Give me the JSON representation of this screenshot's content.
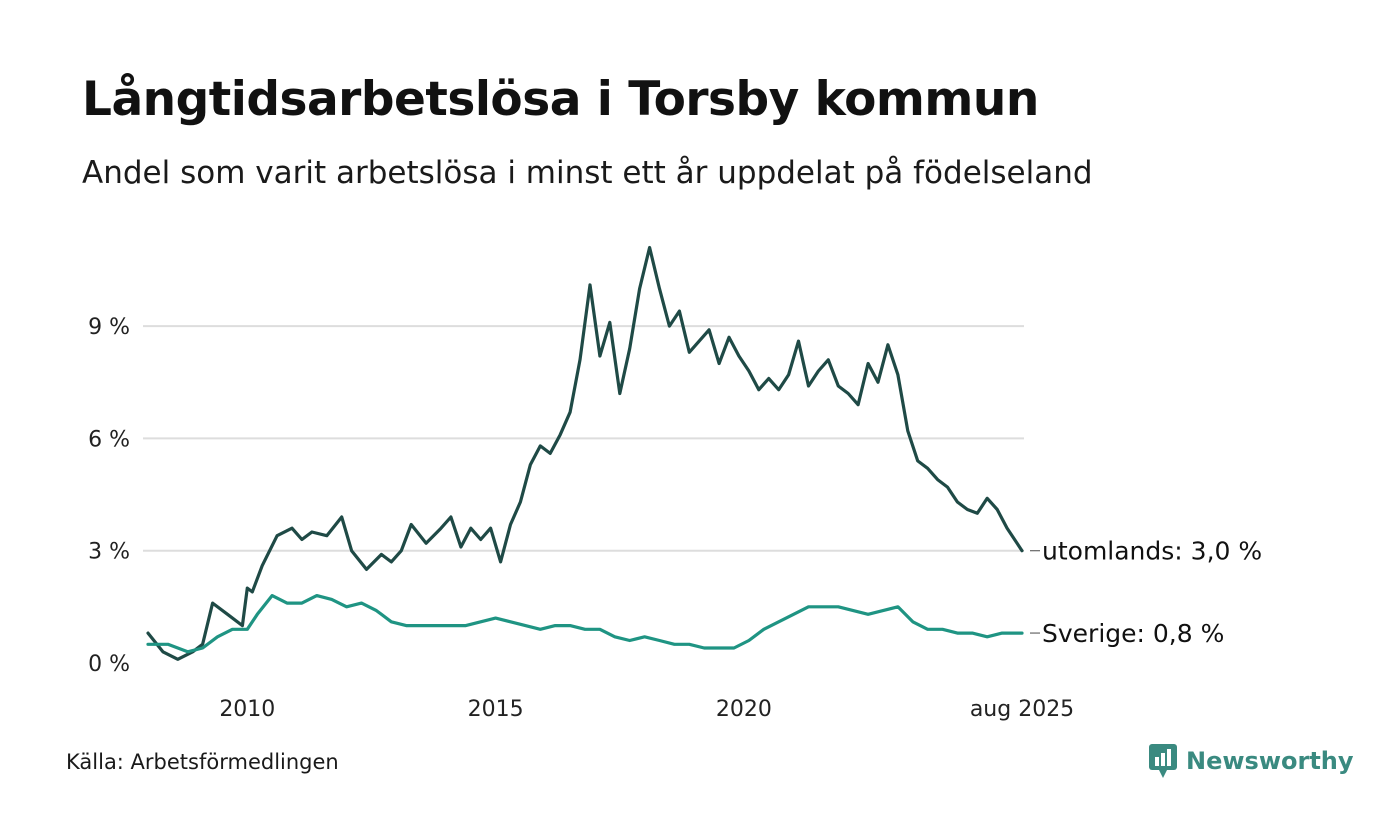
{
  "header": {
    "title": "Långtidsarbetslösa i Torsby kommun",
    "subtitle": "Andel som varit arbetslösa i minst ett år uppdelat på födelseland"
  },
  "footer": {
    "source": "Källa: Arbetsförmedlingen",
    "brand": "Newsworthy",
    "brand_icon": "newsworthy-logo-icon"
  },
  "colors": {
    "utomlands": "#1f4a46",
    "sverige": "#1f9483",
    "grid": "#dddddd"
  },
  "chart_data": {
    "type": "line",
    "title": "Långtidsarbetslösa i Torsby kommun",
    "subtitle": "Andel som varit arbetslösa i minst ett år uppdelat på födelseland",
    "y_ticks": [
      0,
      3,
      6,
      9
    ],
    "y_tick_labels": [
      "0 %",
      "3 %",
      "6 %",
      "9 %"
    ],
    "ylim": [
      0,
      11.3
    ],
    "x_ticks": [
      2010,
      2015,
      2020,
      2025.6
    ],
    "x_tick_labels": [
      "2010",
      "2015",
      "2020",
      "aug 2025"
    ],
    "xlim": [
      2008.0,
      2025.6
    ],
    "grid": "horizontal",
    "series": [
      {
        "key": "utomlands",
        "end_label": "utomlands: 3,0 %",
        "x": [
          2008.0,
          2008.3,
          2008.6,
          2008.9,
          2009.1,
          2009.3,
          2009.6,
          2009.9,
          2010.0,
          2010.1,
          2010.3,
          2010.6,
          2010.9,
          2011.1,
          2011.3,
          2011.6,
          2011.9,
          2012.1,
          2012.4,
          2012.7,
          2012.9,
          2013.1,
          2013.3,
          2013.6,
          2013.9,
          2014.1,
          2014.3,
          2014.5,
          2014.7,
          2014.9,
          2015.1,
          2015.3,
          2015.5,
          2015.7,
          2015.9,
          2016.1,
          2016.3,
          2016.5,
          2016.7,
          2016.9,
          2017.1,
          2017.3,
          2017.5,
          2017.7,
          2017.9,
          2018.1,
          2018.3,
          2018.5,
          2018.7,
          2018.9,
          2019.1,
          2019.3,
          2019.5,
          2019.7,
          2019.9,
          2020.1,
          2020.3,
          2020.5,
          2020.7,
          2020.9,
          2021.1,
          2021.3,
          2021.5,
          2021.7,
          2021.9,
          2022.1,
          2022.3,
          2022.5,
          2022.7,
          2022.9,
          2023.1,
          2023.3,
          2023.5,
          2023.7,
          2023.9,
          2024.1,
          2024.3,
          2024.5,
          2024.7,
          2024.9,
          2025.1,
          2025.3,
          2025.6
        ],
        "values": [
          0.8,
          0.3,
          0.1,
          0.3,
          0.5,
          1.6,
          1.3,
          1.0,
          2.0,
          1.9,
          2.6,
          3.4,
          3.6,
          3.3,
          3.5,
          3.4,
          3.9,
          3.0,
          2.5,
          2.9,
          2.7,
          3.0,
          3.7,
          3.2,
          3.6,
          3.9,
          3.1,
          3.6,
          3.3,
          3.6,
          2.7,
          3.7,
          4.3,
          5.3,
          5.8,
          5.6,
          6.1,
          6.7,
          8.1,
          10.1,
          8.2,
          9.1,
          7.2,
          8.4,
          10.0,
          11.1,
          10.0,
          9.0,
          9.4,
          8.3,
          8.6,
          8.9,
          8.0,
          8.7,
          8.2,
          7.8,
          7.3,
          7.6,
          7.3,
          7.7,
          8.6,
          7.4,
          7.8,
          8.1,
          7.4,
          7.2,
          6.9,
          8.0,
          7.5,
          8.5,
          7.7,
          6.2,
          5.4,
          5.2,
          4.9,
          4.7,
          4.3,
          4.1,
          4.0,
          4.4,
          4.1,
          3.6,
          3.0
        ]
      },
      {
        "key": "sverige",
        "end_label": "Sverige: 0,8 %",
        "x": [
          2008.0,
          2008.4,
          2008.8,
          2009.1,
          2009.4,
          2009.7,
          2010.0,
          2010.2,
          2010.5,
          2010.8,
          2011.1,
          2011.4,
          2011.7,
          2012.0,
          2012.3,
          2012.6,
          2012.9,
          2013.2,
          2013.5,
          2013.8,
          2014.1,
          2014.4,
          2014.7,
          2015.0,
          2015.3,
          2015.6,
          2015.9,
          2016.2,
          2016.5,
          2016.8,
          2017.1,
          2017.4,
          2017.7,
          2018.0,
          2018.3,
          2018.6,
          2018.9,
          2019.2,
          2019.5,
          2019.8,
          2020.1,
          2020.4,
          2020.7,
          2021.0,
          2021.3,
          2021.6,
          2021.9,
          2022.2,
          2022.5,
          2022.8,
          2023.1,
          2023.4,
          2023.7,
          2024.0,
          2024.3,
          2024.6,
          2024.9,
          2025.2,
          2025.6
        ],
        "values": [
          0.5,
          0.5,
          0.3,
          0.4,
          0.7,
          0.9,
          0.9,
          1.3,
          1.8,
          1.6,
          1.6,
          1.8,
          1.7,
          1.5,
          1.6,
          1.4,
          1.1,
          1.0,
          1.0,
          1.0,
          1.0,
          1.0,
          1.1,
          1.2,
          1.1,
          1.0,
          0.9,
          1.0,
          1.0,
          0.9,
          0.9,
          0.7,
          0.6,
          0.7,
          0.6,
          0.5,
          0.5,
          0.4,
          0.4,
          0.4,
          0.6,
          0.9,
          1.1,
          1.3,
          1.5,
          1.5,
          1.5,
          1.4,
          1.3,
          1.4,
          1.5,
          1.1,
          0.9,
          0.9,
          0.8,
          0.8,
          0.7,
          0.8,
          0.8
        ]
      }
    ]
  }
}
